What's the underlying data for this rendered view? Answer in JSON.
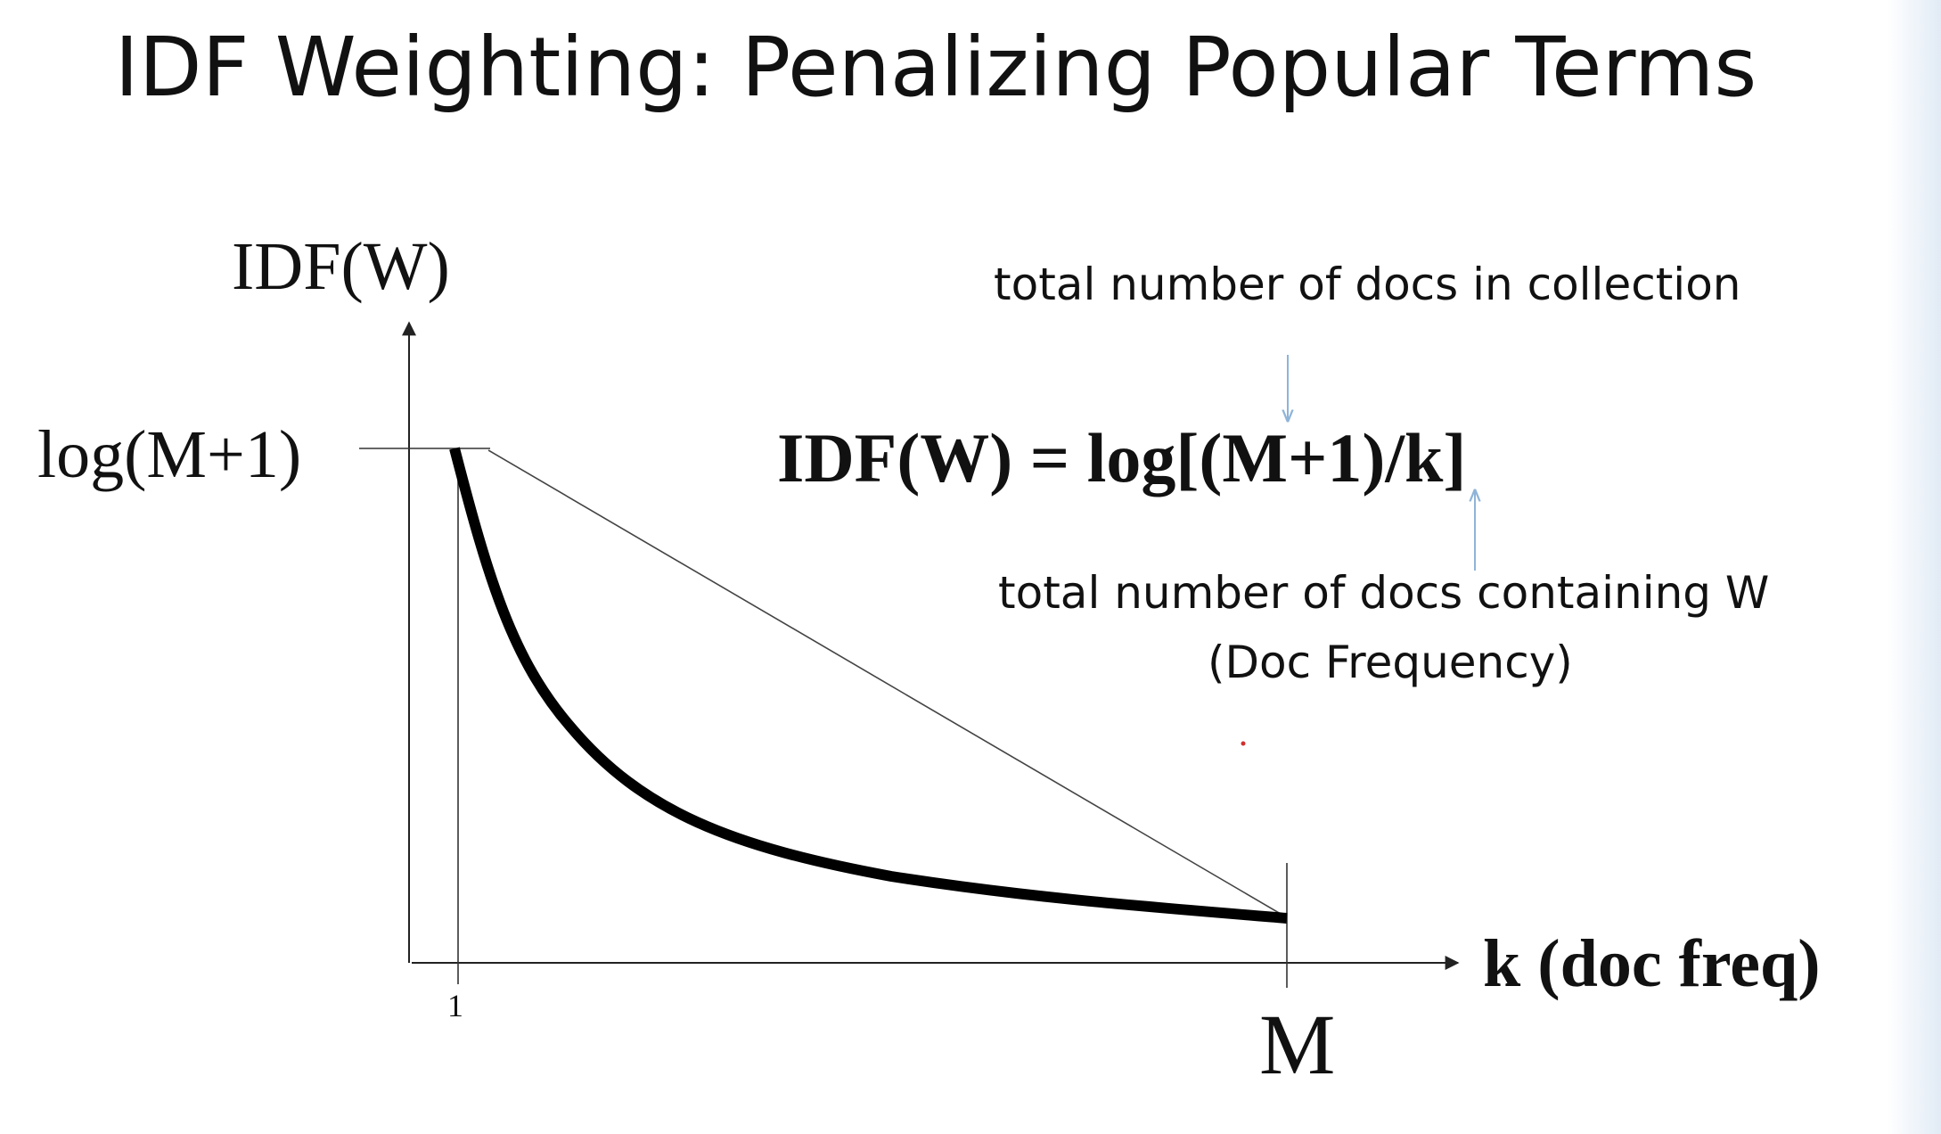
{
  "slide": {
    "title": "IDF Weighting: Penalizing Popular Terms"
  },
  "diagram": {
    "y_axis_label": "IDF(W)",
    "y_max_label": "log(M+1)",
    "x_axis_label": "k (doc freq)",
    "x_tick_min_label": "1",
    "x_tick_max_label": "M",
    "formula": "IDF(W) = log[(M+1)/k]",
    "annotation_top": "total number of docs in collection",
    "annotation_bottom_line1": "total number of docs containing W",
    "annotation_bottom_line2": "(Doc Frequency)"
  },
  "colors": {
    "text": "#111111",
    "curve": "#000000",
    "axis": "#222222",
    "annotation_arrow": "#8fb4d8",
    "background": "#ffffff"
  }
}
